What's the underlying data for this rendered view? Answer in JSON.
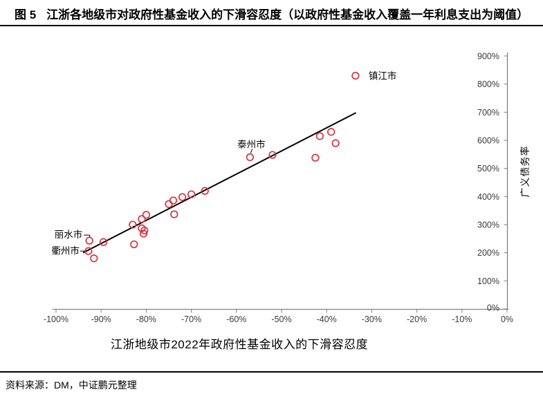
{
  "header": {
    "figure_label": "图 5",
    "title": "江浙各地级市对政府性基金收入的下滑容忍度（以政府性基金收入覆盖一年利息支出为阈值）"
  },
  "footer": {
    "source": "资料来源：DM，中证鹏元整理"
  },
  "colors": {
    "point": "#d6333c",
    "trend": "#000000",
    "axis": "#7f7f7f",
    "tick_text": "#3a3a3a",
    "label_text": "#000000"
  },
  "chart_data": {
    "type": "scatter",
    "title": "江浙各地级市对政府性基金收入的下滑容忍度（以政府性基金收入覆盖一年利息支出为阈值）",
    "xlabel": "江浙地级市2022年政府性基金收入的下滑容忍度",
    "ylabel": "广义债务率",
    "xlim": [
      -100,
      0
    ],
    "ylim": [
      0,
      900
    ],
    "grid": false,
    "x_tick_values": [
      -100,
      -90,
      -80,
      -70,
      -60,
      -50,
      -40,
      -30,
      -20,
      -10,
      0
    ],
    "x_tick_labels": [
      "-100%",
      "-90%",
      "-80%",
      "-70%",
      "-60%",
      "-50%",
      "-40%",
      "-30%",
      "-20%",
      "-10%",
      "0%"
    ],
    "y_tick_values": [
      0,
      100,
      200,
      300,
      400,
      500,
      600,
      700,
      800,
      900
    ],
    "y_tick_labels": [
      "0%",
      "100%",
      "200%",
      "300%",
      "400%",
      "500%",
      "600%",
      "700%",
      "800%",
      "900%"
    ],
    "points": [
      {
        "x": -33.6,
        "y": 830,
        "label": "镇江市",
        "label_placement": "right"
      },
      {
        "x": -38,
        "y": 590
      },
      {
        "x": -39,
        "y": 630
      },
      {
        "x": -41.5,
        "y": 615
      },
      {
        "x": -42.5,
        "y": 538
      },
      {
        "x": -52,
        "y": 548
      },
      {
        "x": -57,
        "y": 540,
        "label": "泰州市",
        "label_placement": "above"
      },
      {
        "x": -67,
        "y": 420
      },
      {
        "x": -70,
        "y": 408
      },
      {
        "x": -72,
        "y": 398
      },
      {
        "x": -73.8,
        "y": 337
      },
      {
        "x": -74,
        "y": 386
      },
      {
        "x": -75,
        "y": 373
      },
      {
        "x": -80,
        "y": 335
      },
      {
        "x": -80.4,
        "y": 279
      },
      {
        "x": -80.6,
        "y": 268
      },
      {
        "x": -81,
        "y": 320
      },
      {
        "x": -81,
        "y": 287
      },
      {
        "x": -83,
        "y": 300
      },
      {
        "x": -82.7,
        "y": 230
      },
      {
        "x": -89.5,
        "y": 238
      },
      {
        "x": -91.6,
        "y": 180
      },
      {
        "x": -92.6,
        "y": 243,
        "label": "丽水市",
        "label_placement": "left-elbow"
      },
      {
        "x": -92.8,
        "y": 206,
        "label": "衢州市",
        "label_placement": "left-dash"
      }
    ],
    "trendline": {
      "x1": -94,
      "y1": 200,
      "x2": -33.5,
      "y2": 698
    }
  }
}
